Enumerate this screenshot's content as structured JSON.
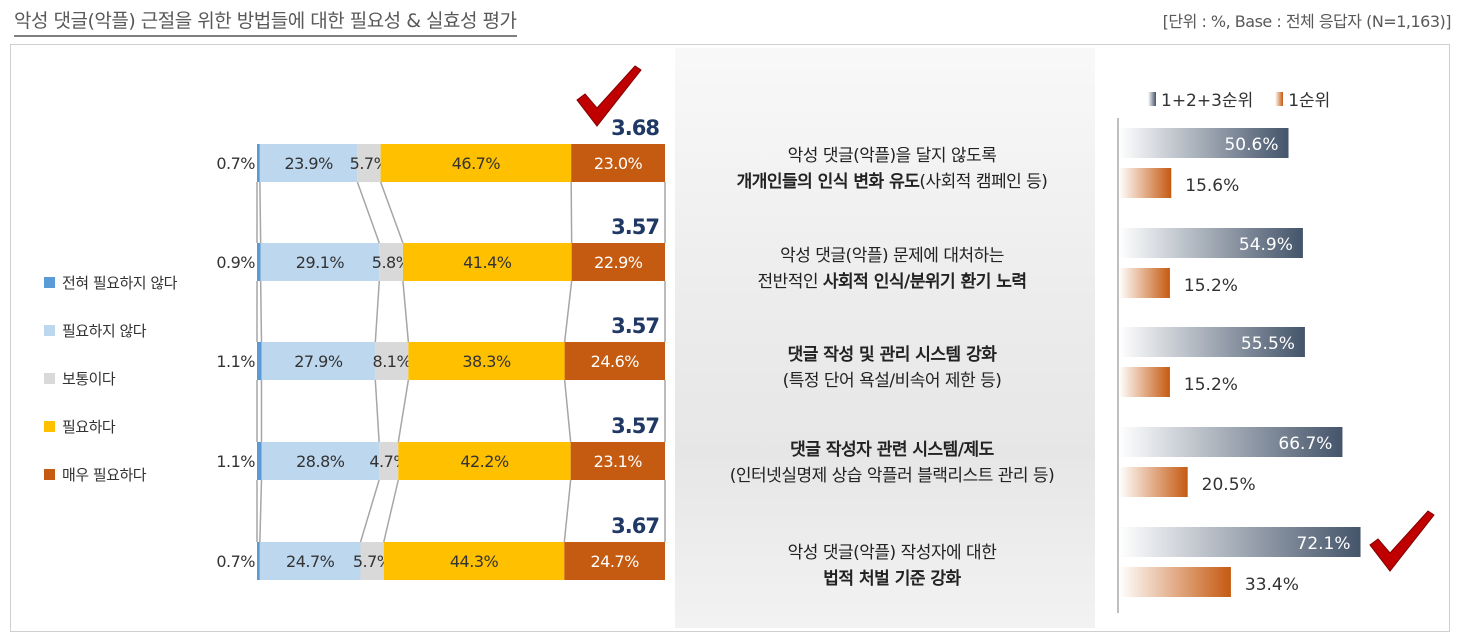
{
  "header": {
    "title": "악성 댓글(악플) 근절을 위한 방법들에 대한 필요성 & 실효성 평가",
    "unit": "[단위 : %, Base : 전체 응답자 (N=1,163)]"
  },
  "colors": {
    "not_at_all": "#5b9bd5",
    "not_needed": "#bdd7ee",
    "neutral": "#d9d9d9",
    "needed": "#ffc000",
    "very_needed": "#c55a11",
    "score": "#1f3864",
    "rank123": "#44546a",
    "rank1": "#c55a11",
    "check": "#c00000"
  },
  "legend_left": [
    {
      "label": "전혀 필요하지 않다",
      "color": "#5b9bd5"
    },
    {
      "label": "필요하지 않다",
      "color": "#bdd7ee"
    },
    {
      "label": "보통이다",
      "color": "#d9d9d9"
    },
    {
      "label": "필요하다",
      "color": "#ffc000"
    },
    {
      "label": "매우 필요하다",
      "color": "#c55a11"
    }
  ],
  "legend_right": [
    {
      "label": "1+2+3순위",
      "color": "#44546a"
    },
    {
      "label": "1순위",
      "color": "#c55a11"
    }
  ],
  "items": [
    {
      "line1": "악성 댓글(악플)을 달지 않도록",
      "line2_bold": "개개인들의 인식 변화 유도",
      "line2_rest": "(사회적 캠페인 등)"
    },
    {
      "line1": "악성 댓글(악플) 문제에 대처하는",
      "line2_pre": "전반적인 ",
      "line2_bold": "사회적 인식/분위기 환기 노력"
    },
    {
      "line1_bold": "댓글 작성 및 관리 시스템 강화",
      "line2": "(특정 단어 욕설/비속어 제한 등)"
    },
    {
      "line1_bold": "댓글 작성자 관련 시스템/제도",
      "line2": "(인터넷실명제 상습 악플러 블랙리스트 관리 등)"
    },
    {
      "line1": "악성 댓글(악플) 작성자에 대한",
      "line2_bold": "법적 처벌 기준 강화"
    }
  ],
  "chart_data": [
    {
      "type": "bar",
      "orientation": "horizontal",
      "stacked": true,
      "categories": [
        "개개인들의 인식 변화 유도",
        "사회적 인식/분위기 환기 노력",
        "댓글 작성 및 관리 시스템 강화",
        "댓글 작성자 관련 시스템/제도",
        "법적 처벌 기준 강화"
      ],
      "series": [
        {
          "name": "전혀 필요하지 않다",
          "values": [
            0.7,
            0.9,
            1.1,
            1.1,
            0.7
          ],
          "labels": [
            "0.7%",
            "0.9%",
            "1.1%",
            "1.1%",
            "0.7%"
          ]
        },
        {
          "name": "필요하지 않다",
          "values": [
            23.9,
            29.1,
            27.9,
            28.8,
            24.7
          ],
          "labels": [
            "23.9%",
            "29.1%",
            "27.9%",
            "28.8%",
            "24.7%"
          ]
        },
        {
          "name": "보통이다",
          "values": [
            5.7,
            5.8,
            8.1,
            4.7,
            5.7
          ],
          "labels": [
            "5.7%",
            "5.8%",
            "8.1%",
            "4.7%",
            "5.7%"
          ]
        },
        {
          "name": "필요하다",
          "values": [
            46.7,
            41.4,
            38.3,
            42.2,
            44.3
          ],
          "labels": [
            "46.7%",
            "41.4%",
            "38.3%",
            "42.2%",
            "44.3%"
          ]
        },
        {
          "name": "매우 필요하다",
          "values": [
            23.0,
            22.9,
            24.6,
            23.1,
            24.7
          ],
          "labels": [
            "23.0%",
            "22.9%",
            "24.6%",
            "23.1%",
            "24.7%"
          ]
        }
      ],
      "scores": [
        "3.68",
        "3.57",
        "3.57",
        "3.57",
        "3.67"
      ],
      "check_on_row": 0
    },
    {
      "type": "bar",
      "orientation": "horizontal",
      "series": [
        {
          "name": "1+2+3순위",
          "values": [
            50.6,
            54.9,
            55.5,
            66.7,
            72.1
          ],
          "labels": [
            "50.6%",
            "54.9%",
            "55.5%",
            "66.7%",
            "72.1%"
          ]
        },
        {
          "name": "1순위",
          "values": [
            15.6,
            15.2,
            15.2,
            20.5,
            33.4
          ],
          "labels": [
            "15.6%",
            "15.2%",
            "15.2%",
            "20.5%",
            "33.4%"
          ]
        }
      ],
      "check_on_row": 4
    }
  ]
}
